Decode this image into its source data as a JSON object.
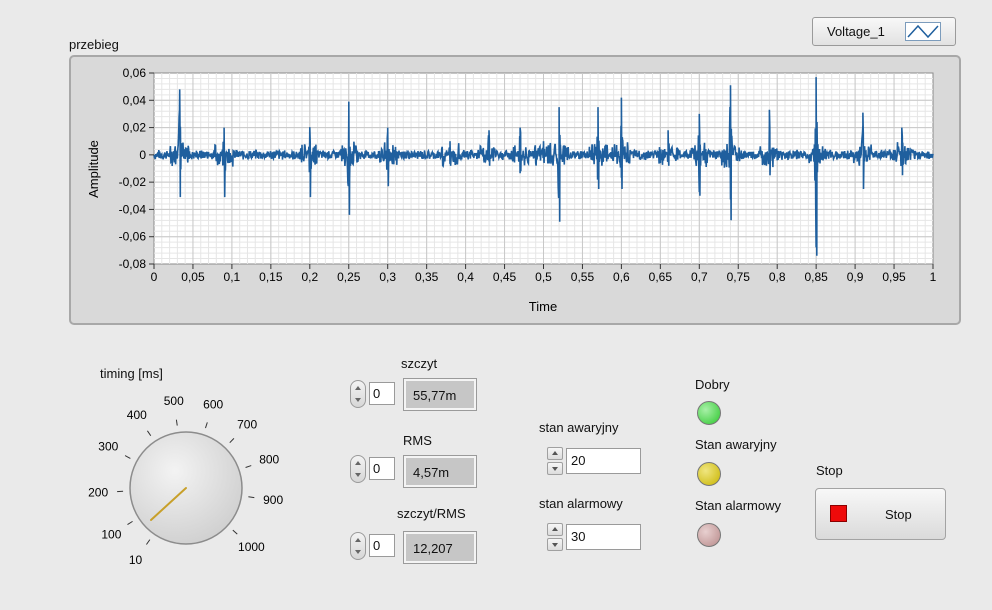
{
  "graph": {
    "label": "przebieg",
    "legend_label": "Voltage_1",
    "y_label": "Amplitude",
    "x_label": "Time",
    "y_ticks": [
      "0,06",
      "0,04",
      "0,02",
      "0",
      "-0,02",
      "-0,04",
      "-0,06",
      "-0,08"
    ],
    "x_ticks": [
      "0",
      "0,05",
      "0,1",
      "0,15",
      "0,2",
      "0,25",
      "0,3",
      "0,35",
      "0,4",
      "0,45",
      "0,5",
      "0,55",
      "0,6",
      "0,65",
      "0,7",
      "0,75",
      "0,8",
      "0,85",
      "0,9",
      "0,95",
      "1"
    ],
    "line_color": "#1f5f9e"
  },
  "chart_data": {
    "type": "line",
    "xlabel": "Time",
    "ylabel": "Amplitude",
    "xlim": [
      0,
      1
    ],
    "ylim": [
      -0.08,
      0.06
    ],
    "grid": true,
    "series": [
      {
        "name": "Voltage_1",
        "baseline_noise": 0.004,
        "spikes": [
          {
            "x": 0.033,
            "max": 0.048,
            "min": -0.031
          },
          {
            "x": 0.09,
            "max": 0.02,
            "min": -0.031
          },
          {
            "x": 0.2,
            "max": 0.02,
            "min": -0.031
          },
          {
            "x": 0.25,
            "max": 0.039,
            "min": -0.044
          },
          {
            "x": 0.3,
            "max": 0.02,
            "min": -0.023
          },
          {
            "x": 0.38,
            "max": 0.01,
            "min": -0.008
          },
          {
            "x": 0.43,
            "max": 0.018,
            "min": -0.008
          },
          {
            "x": 0.47,
            "max": 0.02,
            "min": -0.012
          },
          {
            "x": 0.5,
            "max": 0.01,
            "min": -0.006
          },
          {
            "x": 0.52,
            "max": 0.035,
            "min": -0.049
          },
          {
            "x": 0.57,
            "max": 0.035,
            "min": -0.025
          },
          {
            "x": 0.6,
            "max": 0.042,
            "min": -0.025
          },
          {
            "x": 0.66,
            "max": 0.018,
            "min": -0.008
          },
          {
            "x": 0.7,
            "max": 0.03,
            "min": -0.03
          },
          {
            "x": 0.74,
            "max": 0.051,
            "min": -0.048
          },
          {
            "x": 0.79,
            "max": 0.033,
            "min": -0.015
          },
          {
            "x": 0.85,
            "max": 0.057,
            "min": -0.074
          },
          {
            "x": 0.91,
            "max": 0.031,
            "min": -0.025
          },
          {
            "x": 0.96,
            "max": 0.02,
            "min": -0.015
          }
        ]
      }
    ]
  },
  "knob": {
    "label": "timing [ms]",
    "ticks": [
      "10",
      "100",
      "200",
      "300",
      "400",
      "500",
      "600",
      "700",
      "800",
      "900",
      "1000"
    ],
    "value": 10
  },
  "numerics": {
    "szczyt": {
      "label": "szczyt",
      "control": "0",
      "value": "55,77m"
    },
    "rms": {
      "label": "RMS",
      "control": "0",
      "value": "4,57m"
    },
    "ratio": {
      "label": "szczyt/RMS",
      "control": "0",
      "value": "12,207"
    }
  },
  "limits": {
    "awaryjny": {
      "label": "stan awaryjny",
      "value": "20"
    },
    "alarmowy": {
      "label": "stan alarmowy",
      "value": "30"
    }
  },
  "leds": {
    "dobry": {
      "label": "Dobry",
      "color": "#2ec82e"
    },
    "awaryjny": {
      "label": "Stan awaryjny",
      "color": "#c8b400"
    },
    "alarmowy": {
      "label": "Stan alarmowy",
      "color": "#b88a8a"
    }
  },
  "stop": {
    "label": "Stop",
    "button_label": "Stop",
    "color": "#ee0a0a"
  }
}
